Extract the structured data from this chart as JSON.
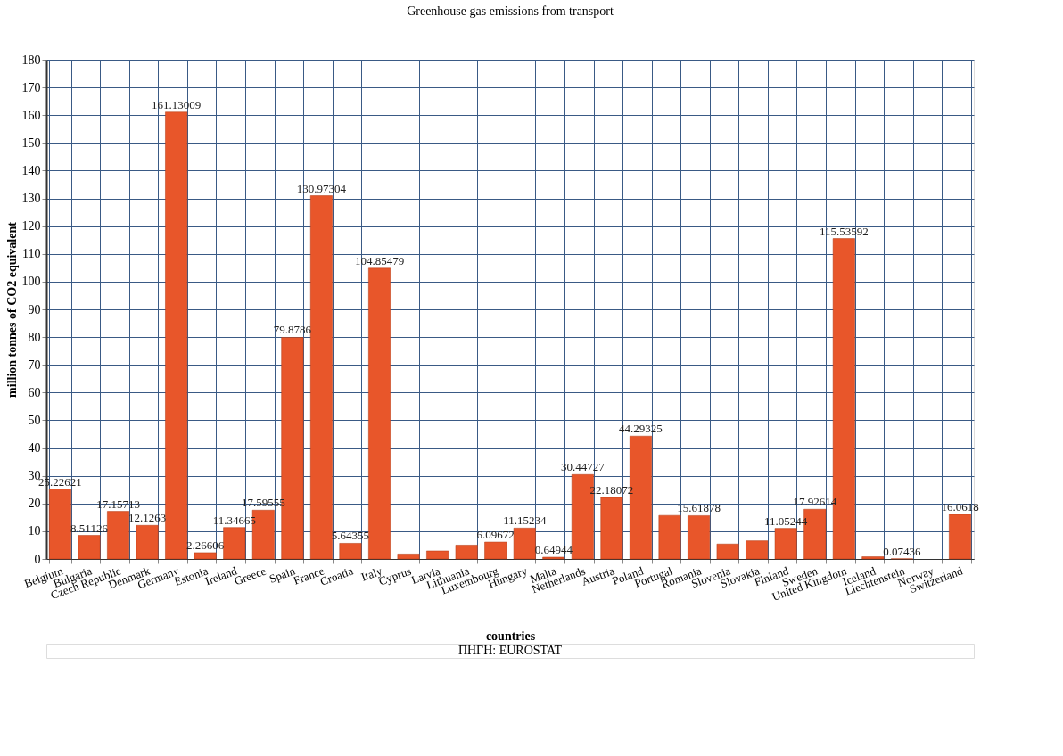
{
  "chart_data": {
    "type": "bar",
    "title": "Greenhouse gas emissions from transport",
    "xlabel": "countries",
    "ylabel": "million tonnes of CO2 equivalent",
    "categories": [
      "Belgium",
      "Bulgaria",
      "Czech Republic",
      "Denmark",
      "Germany",
      "Estonia",
      "Ireland",
      "Greece",
      "Spain",
      "France",
      "Croatia",
      "Italy",
      "Cyprus",
      "Latvia",
      "Lithuania",
      "Luxembourg",
      "Hungary",
      "Malta",
      "Netherlands",
      "Austria",
      "Poland",
      "Portugal",
      "Romania",
      "Slovenia",
      "Slovakia",
      "Finland",
      "Sweden",
      "United Kingdom",
      "Iceland",
      "Liechtenstein",
      "Norway",
      "Switzerland"
    ],
    "values": [
      25.22621,
      8.51126,
      17.15713,
      12.1263,
      161.13009,
      2.26606,
      11.34665,
      17.59555,
      79.8786,
      130.97304,
      5.64355,
      104.85479,
      1.8,
      2.9,
      5.0,
      6.09672,
      11.15234,
      0.64944,
      30.44727,
      22.18072,
      44.29325,
      15.7,
      15.61878,
      5.4,
      6.55,
      11.05244,
      17.92614,
      115.53592,
      0.8,
      0.07436,
      null,
      16.0618
    ],
    "value_labels": [
      "25.22621",
      "8.51126",
      "17.15713",
      "12.1263",
      "161.13009",
      "2.26606",
      "11.34665",
      "17.59555",
      "79.8786",
      "130.97304",
      "5.64355",
      "104.85479",
      null,
      null,
      null,
      "6.09672",
      "11.15234",
      "0.64944",
      "30.44727",
      "22.18072",
      "44.29325",
      null,
      "15.61878",
      null,
      null,
      "11.05244",
      "17.92614",
      "115.53592",
      null,
      "0.07436",
      null,
      "16.0618"
    ],
    "color": "#e8562a",
    "ylim": [
      0,
      180
    ],
    "yticks": [
      0,
      10,
      20,
      30,
      40,
      50,
      60,
      70,
      80,
      90,
      100,
      110,
      120,
      130,
      140,
      150,
      160,
      170,
      180
    ],
    "grid": true,
    "annotations": [
      "ΠΗΓΗ: EUROSTAT"
    ]
  }
}
